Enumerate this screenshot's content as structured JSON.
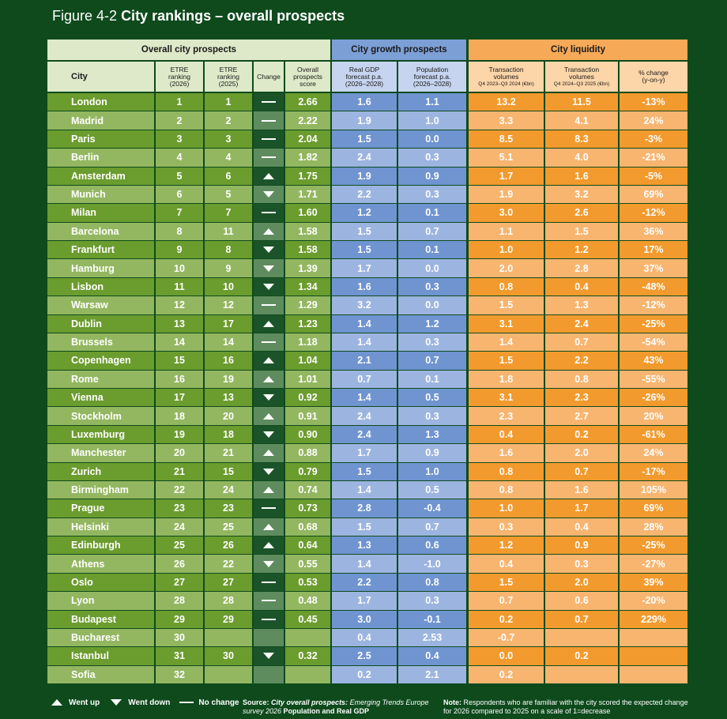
{
  "title": {
    "figure": "Figure 4-2",
    "text": "City rankings – overall prospects"
  },
  "table": {
    "groups": [
      "Overall city prospects",
      "City growth prospects",
      "City liquidity"
    ],
    "columns": [
      [
        "City"
      ],
      [
        "ETRE",
        "ranking",
        "(2026)"
      ],
      [
        "ETRE",
        "ranking",
        "(2025)"
      ],
      [
        "Change"
      ],
      [
        "Overall",
        "prospects",
        "score"
      ],
      [
        "Real GDP",
        "forecast p.a.",
        "(2026–2028)"
      ],
      [
        "Population",
        "forecast p.a.",
        "(2026–2028)"
      ],
      [
        "Transaction",
        "volumes",
        "Q4 2023–Q3 2024 (€bn)"
      ],
      [
        "Transaction",
        "volumes",
        "Q4 2024–Q3 2025 (€bn)"
      ],
      [
        "% change",
        "(y-on-y)"
      ]
    ],
    "rows": [
      [
        "London",
        "1",
        "1",
        "No change",
        "2.66",
        "1.6",
        "1.1",
        "13.2",
        "11.5",
        "-13%"
      ],
      [
        "Madrid",
        "2",
        "2",
        "No change",
        "2.22",
        "1.9",
        "1.0",
        "3.3",
        "4.1",
        "24%"
      ],
      [
        "Paris",
        "3",
        "3",
        "No change",
        "2.04",
        "1.5",
        "0.0",
        "8.5",
        "8.3",
        "-3%"
      ],
      [
        "Berlin",
        "4",
        "4",
        "No change",
        "1.82",
        "2.4",
        "0.3",
        "5.1",
        "4.0",
        "-21%"
      ],
      [
        "Amsterdam",
        "5",
        "6",
        "Went up",
        "1.75",
        "1.9",
        "0.9",
        "1.7",
        "1.6",
        "-5%"
      ],
      [
        "Munich",
        "6",
        "5",
        "Went down",
        "1.71",
        "2.2",
        "0.3",
        "1.9",
        "3.2",
        "69%"
      ],
      [
        "Milan",
        "7",
        "7",
        "No change",
        "1.60",
        "1.2",
        "0.1",
        "3.0",
        "2.6",
        "-12%"
      ],
      [
        "Barcelona",
        "8",
        "11",
        "Went up",
        "1.58",
        "1.5",
        "0.7",
        "1.1",
        "1.5",
        "36%"
      ],
      [
        "Frankfurt",
        "9",
        "8",
        "Went down",
        "1.58",
        "1.5",
        "0.1",
        "1.0",
        "1.2",
        "17%"
      ],
      [
        "Hamburg",
        "10",
        "9",
        "Went down",
        "1.39",
        "1.7",
        "0.0",
        "2.0",
        "2.8",
        "37%"
      ],
      [
        "Lisbon",
        "11",
        "10",
        "Went down",
        "1.34",
        "1.6",
        "0.3",
        "0.8",
        "0.4",
        "-48%"
      ],
      [
        "Warsaw",
        "12",
        "12",
        "No change",
        "1.29",
        "3.2",
        "0.0",
        "1.5",
        "1.3",
        "-12%"
      ],
      [
        "Dublin",
        "13",
        "17",
        "Went up",
        "1.23",
        "1.4",
        "1.2",
        "3.1",
        "2.4",
        "-25%"
      ],
      [
        "Brussels",
        "14",
        "14",
        "No change",
        "1.18",
        "1.4",
        "0.3",
        "1.4",
        "0.7",
        "-54%"
      ],
      [
        "Copenhagen",
        "15",
        "16",
        "Went up",
        "1.04",
        "2.1",
        "0.7",
        "1.5",
        "2.2",
        "43%"
      ],
      [
        "Rome",
        "16",
        "19",
        "Went up",
        "1.01",
        "0.7",
        "0.1",
        "1.8",
        "0.8",
        "-55%"
      ],
      [
        "Vienna",
        "17",
        "13",
        "Went down",
        "0.92",
        "1.4",
        "0.5",
        "3.1",
        "2.3",
        "-26%"
      ],
      [
        "Stockholm",
        "18",
        "20",
        "Went up",
        "0.91",
        "2.4",
        "0.3",
        "2.3",
        "2.7",
        "20%"
      ],
      [
        "Luxemburg",
        "19",
        "18",
        "Went down",
        "0.90",
        "2.4",
        "1.3",
        "0.4",
        "0.2",
        "-61%"
      ],
      [
        "Manchester",
        "20",
        "21",
        "Went up",
        "0.88",
        "1.7",
        "0.9",
        "1.6",
        "2.0",
        "24%"
      ],
      [
        "Zurich",
        "21",
        "15",
        "Went down",
        "0.79",
        "1.5",
        "1.0",
        "0.8",
        "0.7",
        "-17%"
      ],
      [
        "Birmingham",
        "22",
        "24",
        "Went up",
        "0.74",
        "1.4",
        "0.5",
        "0.8",
        "1.6",
        "105%"
      ],
      [
        "Prague",
        "23",
        "23",
        "No change",
        "0.73",
        "2.8",
        "-0.4",
        "1.0",
        "1.7",
        "69%"
      ],
      [
        "Helsinki",
        "24",
        "25",
        "Went up",
        "0.68",
        "1.5",
        "0.7",
        "0.3",
        "0.4",
        "28%"
      ],
      [
        "Edinburgh",
        "25",
        "26",
        "Went up",
        "0.64",
        "1.3",
        "0.6",
        "1.2",
        "0.9",
        "-25%"
      ],
      [
        "Athens",
        "26",
        "22",
        "Went down",
        "0.55",
        "1.4",
        "-1.0",
        "0.4",
        "0.3",
        "-27%"
      ],
      [
        "Oslo",
        "27",
        "27",
        "No change",
        "0.53",
        "2.2",
        "0.8",
        "1.5",
        "2.0",
        "39%"
      ],
      [
        "Lyon",
        "28",
        "28",
        "No change",
        "0.48",
        "1.7",
        "0.3",
        "0.7",
        "0.6",
        "-20%"
      ],
      [
        "Budapest",
        "29",
        "29",
        "No change",
        "0.45",
        "3.0",
        "-0.1",
        "0.2",
        "0.7",
        "229%"
      ],
      [
        "Bucharest",
        "30",
        null,
        null,
        null,
        "0.4",
        "2.53",
        "-0.7",
        null,
        null
      ],
      [
        "Istanbul",
        "31",
        "30",
        "Went down",
        "0.32",
        "2.5",
        "0.4",
        "0.0",
        "0.2",
        null
      ],
      [
        "Sofia",
        "32",
        null,
        null,
        null,
        "0.2",
        "2.1",
        "0.2",
        null,
        null
      ]
    ]
  },
  "legend": {
    "items": [
      "Went up",
      "Went down",
      "No change"
    ]
  },
  "source": {
    "label": "Source:",
    "title": "City overall prospects:",
    "survey": "Emerging Trends Europe survey 2026",
    "extra": "Population and Real GDP"
  },
  "note": {
    "label": "Note:",
    "text": "Respondents who are familiar with the city scored the expected change for 2026 compared to 2025 on a scale of 1=decrease"
  }
}
